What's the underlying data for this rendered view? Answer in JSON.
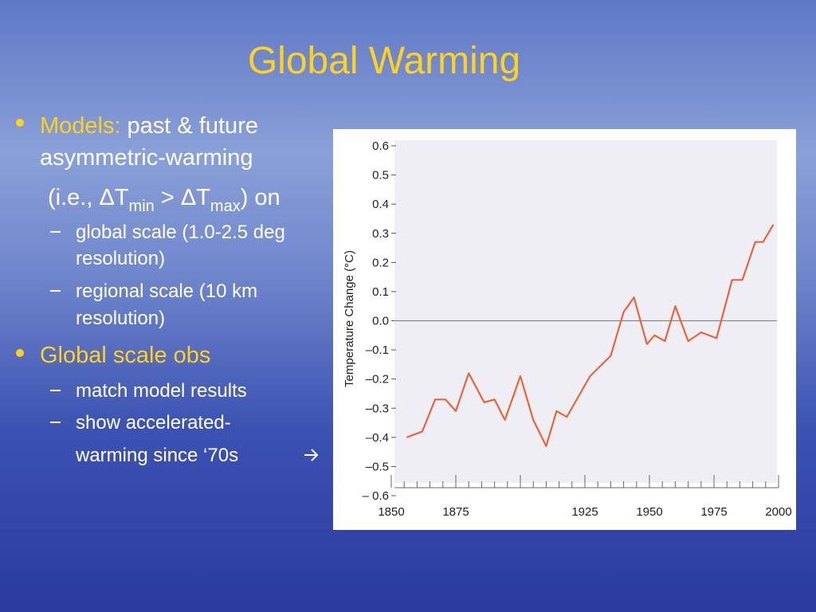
{
  "slide": {
    "title": "Global Warming",
    "bullet_1": {
      "label": "Models:",
      "lines": [
        "past & future",
        "asymmetric-warming"
      ],
      "detail": [
        "(i.e., ΔT",
        "min",
        " > ΔT",
        "max",
        ") on"
      ],
      "subs": [
        [
          "global scale (1.0-2.5 deg",
          "resolution)"
        ],
        [
          "regional scale (10 km",
          "resolution)"
        ]
      ]
    },
    "bullet_2": {
      "label": "Global scale obs",
      "subs": [
        [
          "match model results"
        ],
        [
          "show accelerated-",
          "warming since ‘70s"
        ]
      ]
    }
  },
  "chart_data": {
    "type": "line",
    "ylabel": "Temperature Change (°C)",
    "color": "#e8643a",
    "x": [
      1856,
      1862,
      1867,
      1871,
      1875,
      1880,
      1886,
      1890,
      1894,
      1900,
      1905,
      1910,
      1914,
      1918,
      1927,
      1935,
      1940,
      1944,
      1949,
      1952,
      1956,
      1960,
      1965,
      1970,
      1976,
      1982,
      1986,
      1991,
      1994,
      1998
    ],
    "values": [
      -0.4,
      -0.38,
      -0.27,
      -0.27,
      -0.31,
      -0.18,
      -0.28,
      -0.27,
      -0.34,
      -0.19,
      -0.34,
      -0.43,
      -0.31,
      -0.33,
      -0.19,
      -0.12,
      0.03,
      0.08,
      -0.08,
      -0.05,
      -0.07,
      0.05,
      -0.07,
      -0.04,
      -0.06,
      0.14,
      0.14,
      0.27,
      0.27,
      0.33
    ],
    "xlim": [
      1850,
      2000
    ],
    "ylim": [
      -0.6,
      0.6
    ],
    "xticks": [
      1850,
      1875,
      {
        "value": 1900,
        "label": null
      },
      1925,
      1950,
      1975,
      2000
    ],
    "yticks": [
      0.6,
      0.5,
      0.4,
      0.3,
      0.2,
      0.1,
      {
        "value": 0,
        "label": "0.0"
      },
      {
        "value": -0.1,
        "label": "–0.1"
      },
      {
        "value": -0.2,
        "label": "–0.2"
      },
      {
        "value": -0.3,
        "label": "–0.3"
      },
      {
        "value": -0.4,
        "label": "–0.4"
      },
      {
        "value": -0.5,
        "label": "–0.5"
      },
      {
        "value": -0.6,
        "label": "– 0.6"
      }
    ]
  }
}
